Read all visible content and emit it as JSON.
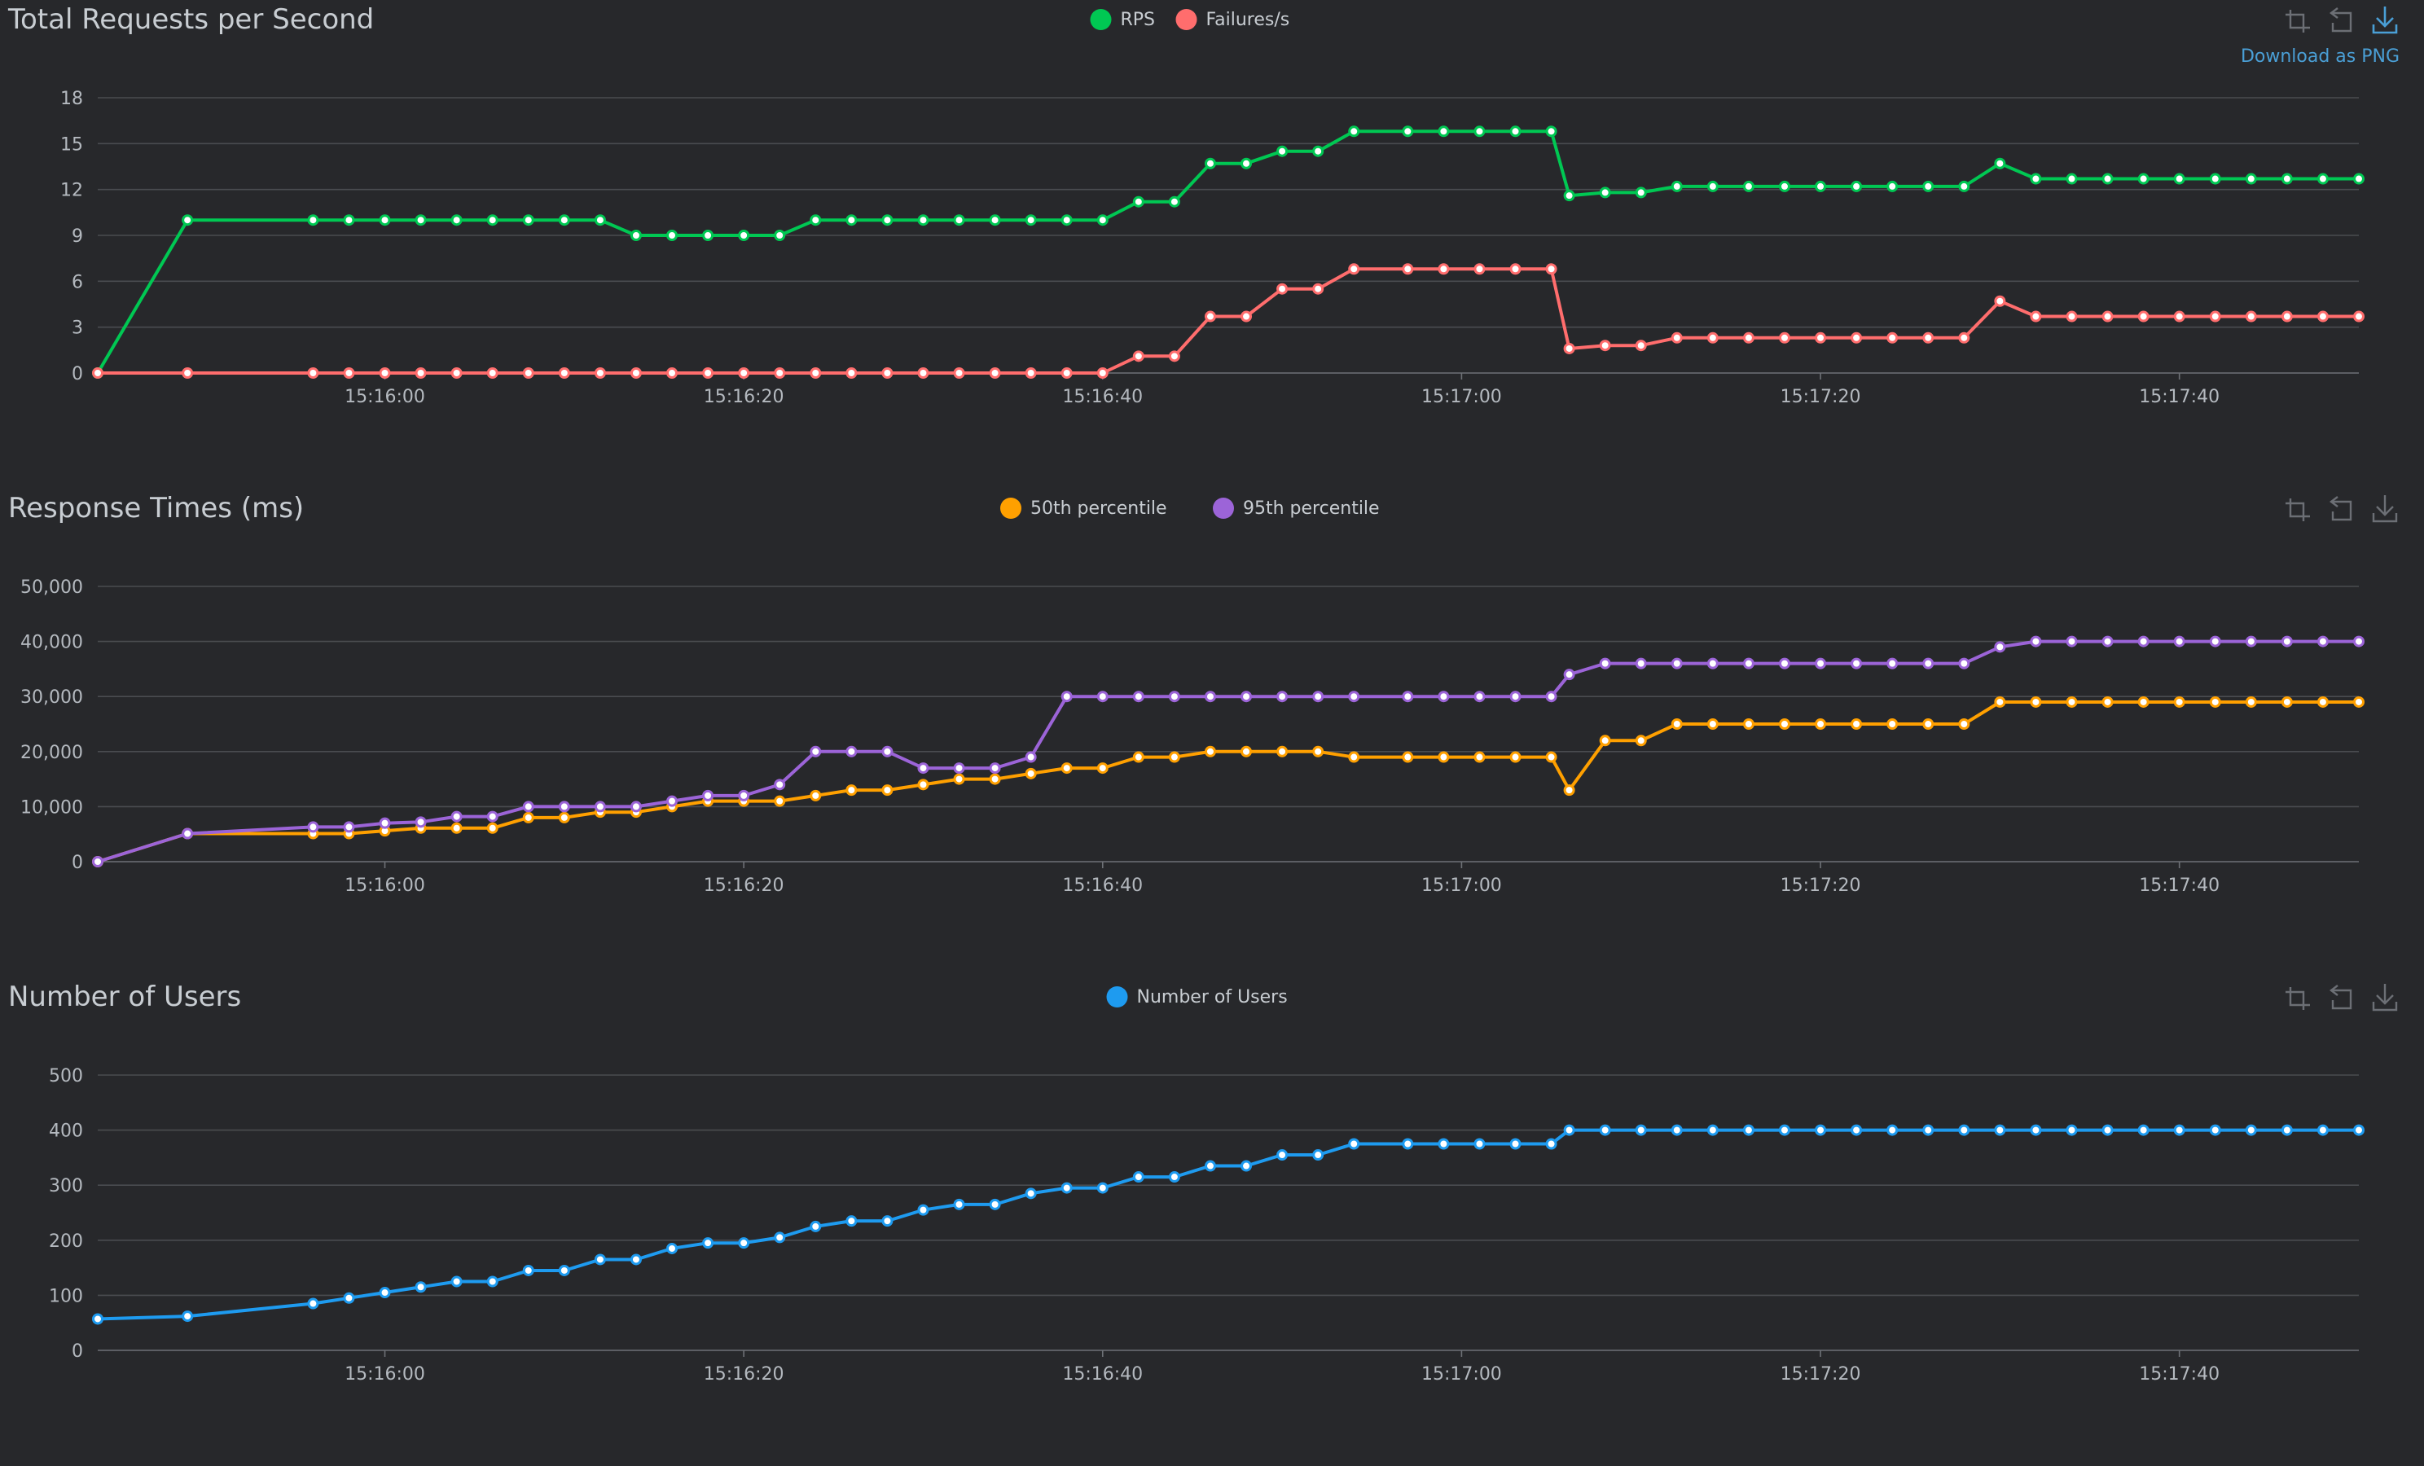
{
  "toolbox": {
    "download_label": "Download as PNG",
    "tools": [
      "zoom-icon",
      "restore-icon",
      "download-icon"
    ]
  },
  "chart_data": [
    {
      "type": "line",
      "title": "Total Requests per Second",
      "xlabel": "",
      "ylabel": "",
      "x_unit": "seconds",
      "x_range": [
        "15:15:44",
        "15:17:50"
      ],
      "x_ticks": [
        "15:16:00",
        "15:16:20",
        "15:16:40",
        "15:17:00",
        "15:17:20",
        "15:17:40"
      ],
      "y_ticks": [
        "0",
        "3",
        "6",
        "9",
        "12",
        "15",
        "18"
      ],
      "ylim": [
        0,
        18
      ],
      "grid": true,
      "legend_position": "top-center",
      "x": [
        "15:15:44",
        "15:15:49",
        "15:15:56",
        "15:15:58",
        "15:16:00",
        "15:16:02",
        "15:16:04",
        "15:16:06",
        "15:16:08",
        "15:16:10",
        "15:16:12",
        "15:16:14",
        "15:16:16",
        "15:16:18",
        "15:16:20",
        "15:16:22",
        "15:16:24",
        "15:16:26",
        "15:16:28",
        "15:16:30",
        "15:16:32",
        "15:16:34",
        "15:16:36",
        "15:16:38",
        "15:16:40",
        "15:16:42",
        "15:16:44",
        "15:16:46",
        "15:16:48",
        "15:16:50",
        "15:16:52",
        "15:16:54",
        "15:16:57",
        "15:16:59",
        "15:17:01",
        "15:17:03",
        "15:17:05",
        "15:17:06",
        "15:17:08",
        "15:17:10",
        "15:17:12",
        "15:17:14",
        "15:17:16",
        "15:17:18",
        "15:17:20",
        "15:17:22",
        "15:17:24",
        "15:17:26",
        "15:17:28",
        "15:17:30",
        "15:17:32",
        "15:17:34",
        "15:17:36",
        "15:17:38",
        "15:17:40",
        "15:17:42",
        "15:17:44",
        "15:17:46",
        "15:17:48",
        "15:17:50"
      ],
      "series": [
        {
          "name": "RPS",
          "color": "#00c853",
          "values": [
            0,
            10,
            10,
            10,
            10,
            10,
            10,
            10,
            10,
            10,
            10,
            9,
            9,
            9,
            9,
            9,
            10,
            10,
            10,
            10,
            10,
            10,
            10,
            10,
            10,
            11.2,
            11.2,
            13.7,
            13.7,
            14.5,
            14.5,
            15.8,
            15.8,
            15.8,
            15.8,
            15.8,
            15.8,
            11.6,
            11.8,
            11.8,
            12.2,
            12.2,
            12.2,
            12.2,
            12.2,
            12.2,
            12.2,
            12.2,
            12.2,
            13.7,
            12.7,
            12.7,
            12.7,
            12.7,
            12.7,
            12.7,
            12.7,
            12.7,
            12.7,
            12.7
          ]
        },
        {
          "name": "Failures/s",
          "color": "#ff6d6d",
          "values": [
            0,
            0,
            0,
            0,
            0,
            0,
            0,
            0,
            0,
            0,
            0,
            0,
            0,
            0,
            0,
            0,
            0,
            0,
            0,
            0,
            0,
            0,
            0,
            0,
            0,
            1.1,
            1.1,
            3.7,
            3.7,
            5.5,
            5.5,
            6.8,
            6.8,
            6.8,
            6.8,
            6.8,
            6.8,
            1.6,
            1.8,
            1.8,
            2.3,
            2.3,
            2.3,
            2.3,
            2.3,
            2.3,
            2.3,
            2.3,
            2.3,
            4.7,
            3.7,
            3.7,
            3.7,
            3.7,
            3.7,
            3.7,
            3.7,
            3.7,
            3.7,
            3.7
          ]
        }
      ]
    },
    {
      "type": "line",
      "title": "Response Times (ms)",
      "xlabel": "",
      "ylabel": "",
      "x_unit": "seconds",
      "x_range": [
        "15:15:44",
        "15:17:50"
      ],
      "x_ticks": [
        "15:16:00",
        "15:16:20",
        "15:16:40",
        "15:17:00",
        "15:17:20",
        "15:17:40"
      ],
      "y_ticks": [
        "0",
        "10,000",
        "20,000",
        "30,000",
        "40,000",
        "50,000"
      ],
      "ylim": [
        0,
        50000
      ],
      "grid": true,
      "legend_position": "top-center",
      "x": [
        "15:15:44",
        "15:15:49",
        "15:15:56",
        "15:15:58",
        "15:16:00",
        "15:16:02",
        "15:16:04",
        "15:16:06",
        "15:16:08",
        "15:16:10",
        "15:16:12",
        "15:16:14",
        "15:16:16",
        "15:16:18",
        "15:16:20",
        "15:16:22",
        "15:16:24",
        "15:16:26",
        "15:16:28",
        "15:16:30",
        "15:16:32",
        "15:16:34",
        "15:16:36",
        "15:16:38",
        "15:16:40",
        "15:16:42",
        "15:16:44",
        "15:16:46",
        "15:16:48",
        "15:16:50",
        "15:16:52",
        "15:16:54",
        "15:16:57",
        "15:16:59",
        "15:17:01",
        "15:17:03",
        "15:17:05",
        "15:17:06",
        "15:17:08",
        "15:17:10",
        "15:17:12",
        "15:17:14",
        "15:17:16",
        "15:17:18",
        "15:17:20",
        "15:17:22",
        "15:17:24",
        "15:17:26",
        "15:17:28",
        "15:17:30",
        "15:17:32",
        "15:17:34",
        "15:17:36",
        "15:17:38",
        "15:17:40",
        "15:17:42",
        "15:17:44",
        "15:17:46",
        "15:17:48",
        "15:17:50"
      ],
      "series": [
        {
          "name": "50th percentile",
          "color": "#ffa000",
          "values": [
            0,
            5100,
            5100,
            5100,
            5600,
            6100,
            6100,
            6100,
            8000,
            8000,
            9000,
            9000,
            10000,
            11000,
            11000,
            11000,
            12000,
            13000,
            13000,
            14000,
            15000,
            15000,
            16000,
            17000,
            17000,
            19000,
            19000,
            20000,
            20000,
            20000,
            20000,
            19000,
            19000,
            19000,
            19000,
            19000,
            19000,
            13000,
            22000,
            22000,
            25000,
            25000,
            25000,
            25000,
            25000,
            25000,
            25000,
            25000,
            25000,
            29000,
            29000,
            29000,
            29000,
            29000,
            29000,
            29000,
            29000,
            29000,
            29000,
            29000
          ]
        },
        {
          "name": "95th percentile",
          "color": "#9c64d8",
          "values": [
            0,
            5100,
            6300,
            6300,
            7000,
            7200,
            8200,
            8200,
            10000,
            10000,
            10000,
            10000,
            11000,
            12000,
            12000,
            14000,
            20000,
            20000,
            20000,
            17000,
            17000,
            17000,
            19000,
            30000,
            30000,
            30000,
            30000,
            30000,
            30000,
            30000,
            30000,
            30000,
            30000,
            30000,
            30000,
            30000,
            30000,
            34000,
            36000,
            36000,
            36000,
            36000,
            36000,
            36000,
            36000,
            36000,
            36000,
            36000,
            36000,
            39000,
            40000,
            40000,
            40000,
            40000,
            40000,
            40000,
            40000,
            40000,
            40000,
            40000
          ]
        }
      ]
    },
    {
      "type": "line",
      "title": "Number of Users",
      "xlabel": "",
      "ylabel": "",
      "x_unit": "seconds",
      "x_range": [
        "15:15:44",
        "15:17:50"
      ],
      "x_ticks": [
        "15:16:00",
        "15:16:20",
        "15:16:40",
        "15:17:00",
        "15:17:20",
        "15:17:40"
      ],
      "y_ticks": [
        "0",
        "100",
        "200",
        "300",
        "400",
        "500"
      ],
      "ylim": [
        0,
        500
      ],
      "grid": true,
      "legend_position": "top-center",
      "x": [
        "15:15:44",
        "15:15:49",
        "15:15:56",
        "15:15:58",
        "15:16:00",
        "15:16:02",
        "15:16:04",
        "15:16:06",
        "15:16:08",
        "15:16:10",
        "15:16:12",
        "15:16:14",
        "15:16:16",
        "15:16:18",
        "15:16:20",
        "15:16:22",
        "15:16:24",
        "15:16:26",
        "15:16:28",
        "15:16:30",
        "15:16:32",
        "15:16:34",
        "15:16:36",
        "15:16:38",
        "15:16:40",
        "15:16:42",
        "15:16:44",
        "15:16:46",
        "15:16:48",
        "15:16:50",
        "15:16:52",
        "15:16:54",
        "15:16:57",
        "15:16:59",
        "15:17:01",
        "15:17:03",
        "15:17:05",
        "15:17:06",
        "15:17:08",
        "15:17:10",
        "15:17:12",
        "15:17:14",
        "15:17:16",
        "15:17:18",
        "15:17:20",
        "15:17:22",
        "15:17:24",
        "15:17:26",
        "15:17:28",
        "15:17:30",
        "15:17:32",
        "15:17:34",
        "15:17:36",
        "15:17:38",
        "15:17:40",
        "15:17:42",
        "15:17:44",
        "15:17:46",
        "15:17:48",
        "15:17:50"
      ],
      "series": [
        {
          "name": "Number of Users",
          "color": "#1e9bf0",
          "values": [
            57,
            62,
            85,
            95,
            105,
            115,
            125,
            125,
            145,
            145,
            165,
            165,
            185,
            195,
            195,
            205,
            225,
            235,
            235,
            255,
            265,
            265,
            285,
            295,
            295,
            315,
            315,
            335,
            335,
            355,
            355,
            375,
            375,
            375,
            375,
            375,
            375,
            400,
            400,
            400,
            400,
            400,
            400,
            400,
            400,
            400,
            400,
            400,
            400,
            400,
            400,
            400,
            400,
            400,
            400,
            400,
            400,
            400,
            400,
            400
          ]
        }
      ]
    }
  ]
}
